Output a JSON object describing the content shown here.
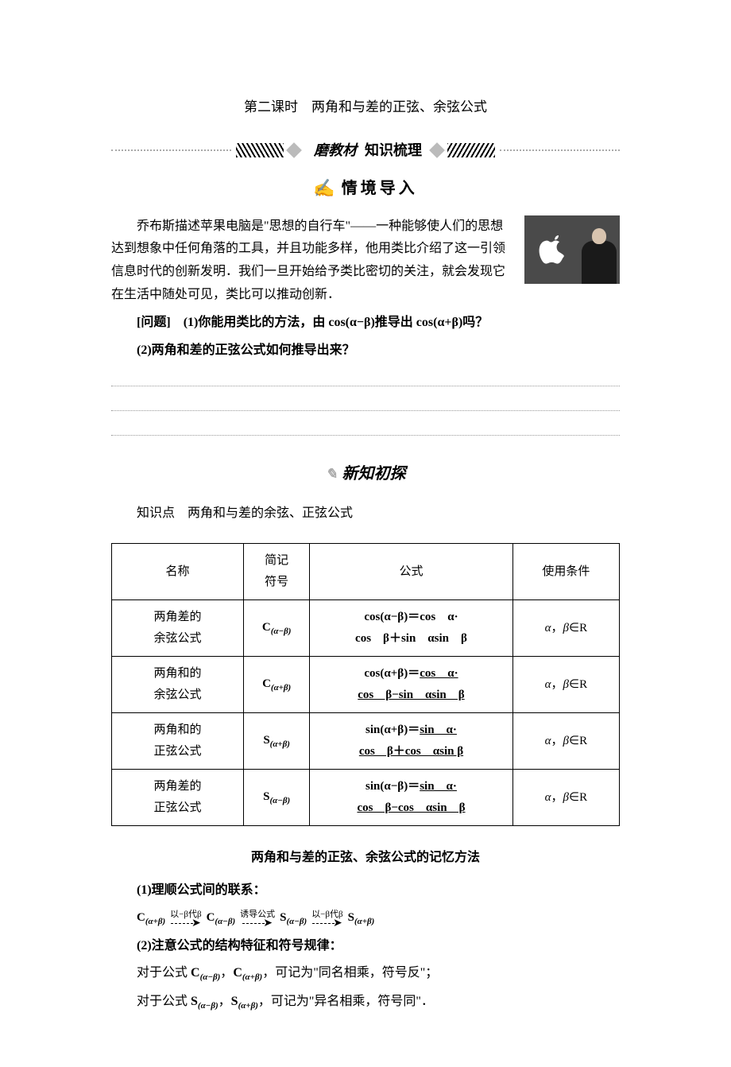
{
  "title": "第二课时　两角和与差的正弦、余弦公式",
  "decor": {
    "center_prefix": "磨教材",
    "center_main": "知识梳理"
  },
  "subhead1": "情境导入",
  "intro": {
    "p1": "乔布斯描述苹果电脑是\"思想的自行车\"——一种能够使人们的思想达到想象中任何角落的工具，并且功能多样，他用类比介绍了这一引领信息时代的创新发明．我们一旦开始给予类比密切的关注，就会发现它在生活中随处可见，类比可以推动创新．",
    "q_label": "[问题]",
    "q1": "(1)你能用类比的方法，由 cos(α−β)推导出 cos(α+β)吗？",
    "q2": "(2)两角和差的正弦公式如何推导出来？"
  },
  "subhead2": "新知初探",
  "point_label": "知识点　两角和与差的余弦、正弦公式",
  "table": {
    "header": {
      "name": "名称",
      "sym1": "简记",
      "sym2": "符号",
      "formula": "公式",
      "cond": "使用条件"
    },
    "rows": [
      {
        "name1": "两角差的",
        "name2": "余弦公式",
        "sym": "C",
        "sub": "(α−β)",
        "line1": "cos(α−β)＝cos　α·",
        "line2": "cos　β＋sin　αsin　β",
        "cond": "α，β∈R",
        "underline": false
      },
      {
        "name1": "两角和的",
        "name2": "余弦公式",
        "sym": "C",
        "sub": "(α+β)",
        "line1": "cos(α+β)＝cos　α·",
        "line2": "cos　β−sin　αsin　β",
        "cond": "α，β∈R",
        "underline": true
      },
      {
        "name1": "两角和的",
        "name2": "正弦公式",
        "sym": "S",
        "sub": "(α+β)",
        "line1": "sin(α+β)＝sin　α·",
        "line2": "cos　β＋cos　αsin β",
        "cond": "α，β∈R",
        "underline": true
      },
      {
        "name1": "两角差的",
        "name2": "正弦公式",
        "sym": "S",
        "sub": "(α−β)",
        "line1": "sin(α−β)＝sin　α·",
        "line2": "cos　β−cos　αsin　β",
        "cond": "α，β∈R",
        "underline": true
      }
    ]
  },
  "memory": {
    "title": "两角和与差的正弦、余弦公式的记忆方法",
    "p1": "(1)理顺公式间的联系：",
    "chain": {
      "n1": {
        "sym": "C",
        "sub": "(α+β)"
      },
      "a1": "以−β代β",
      "n2": {
        "sym": "C",
        "sub": "(α−β)"
      },
      "a2": "诱导公式",
      "n3": {
        "sym": "S",
        "sub": "(α−β)"
      },
      "a3": "以−β代β",
      "n4": {
        "sym": "S",
        "sub": "(α+β)"
      }
    },
    "p2": "(2)注意公式的结构特征和符号规律：",
    "p3": "对于公式 C(α−β)，C(α+β)，可记为\"同名相乘，符号反\"；",
    "p4": "对于公式 S(α−β)，S(α+β)，可记为\"异名相乘，符号同\"．"
  }
}
